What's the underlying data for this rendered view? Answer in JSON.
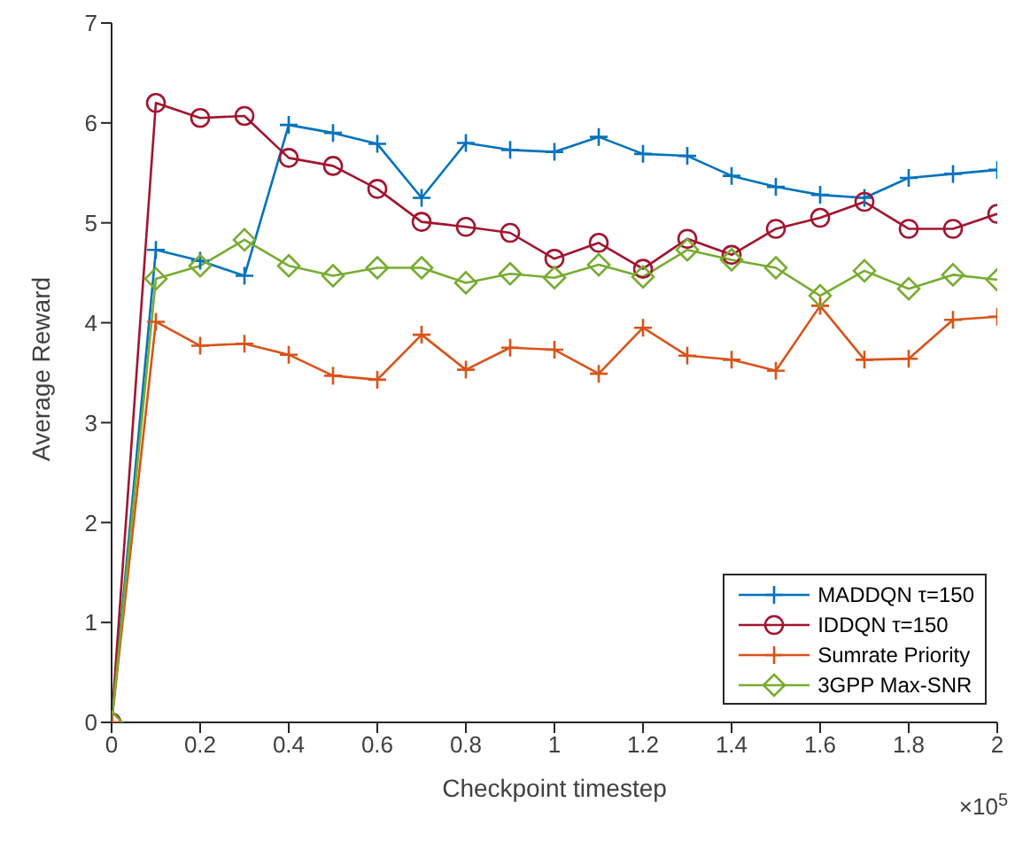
{
  "chart_data": {
    "type": "line",
    "xlabel": "Checkpoint timestep",
    "ylabel": "Average Reward",
    "annotations": [
      "×10$^{5}$"
    ],
    "x": [
      0,
      0.1,
      0.2,
      0.3,
      0.4,
      0.5,
      0.6,
      0.7,
      0.8,
      0.9,
      1.0,
      1.1,
      1.2,
      1.3,
      1.4,
      1.5,
      1.6,
      1.7,
      1.8,
      1.9,
      2.0
    ],
    "series": [
      {
        "name": "MADDQN τ=150",
        "color": "#0072bd",
        "marker": "cross",
        "values": [
          0,
          4.73,
          4.62,
          4.47,
          5.98,
          5.9,
          5.79,
          5.25,
          5.8,
          5.73,
          5.71,
          5.86,
          5.69,
          5.67,
          5.47,
          5.36,
          5.28,
          5.25,
          5.45,
          5.49,
          5.53
        ]
      },
      {
        "name": "IDDQN τ=150",
        "color": "#a2142f",
        "marker": "circle",
        "values": [
          0,
          6.2,
          6.05,
          6.07,
          5.65,
          5.57,
          5.34,
          5.01,
          4.96,
          4.9,
          4.64,
          4.8,
          4.54,
          4.84,
          4.68,
          4.94,
          5.05,
          5.21,
          4.94,
          4.94,
          5.09
        ]
      },
      {
        "name": "Sumrate Priority",
        "color": "#d95319",
        "marker": "cross",
        "values": [
          0,
          4.01,
          3.77,
          3.79,
          3.68,
          3.47,
          3.43,
          3.88,
          3.53,
          3.75,
          3.73,
          3.49,
          3.95,
          3.67,
          3.63,
          3.52,
          4.17,
          3.63,
          3.64,
          4.03,
          4.06
        ]
      },
      {
        "name": "3GPP Max-SNR",
        "color": "#77ac30",
        "marker": "diamond",
        "values": [
          0,
          4.44,
          4.57,
          4.83,
          4.57,
          4.47,
          4.55,
          4.55,
          4.4,
          4.49,
          4.45,
          4.58,
          4.46,
          4.73,
          4.63,
          4.55,
          4.27,
          4.52,
          4.34,
          4.48,
          4.43
        ]
      }
    ],
    "xlim": [
      0,
      2
    ],
    "xticks": [
      0,
      0.2,
      0.4,
      0.6,
      0.8,
      1,
      1.2,
      1.4,
      1.6,
      1.8,
      2
    ],
    "ylim": [
      0,
      7
    ],
    "yticks": [
      0,
      1,
      2,
      3,
      4,
      5,
      6,
      7
    ],
    "grid": false,
    "legend": "bottom right",
    "line_style": "solid"
  }
}
